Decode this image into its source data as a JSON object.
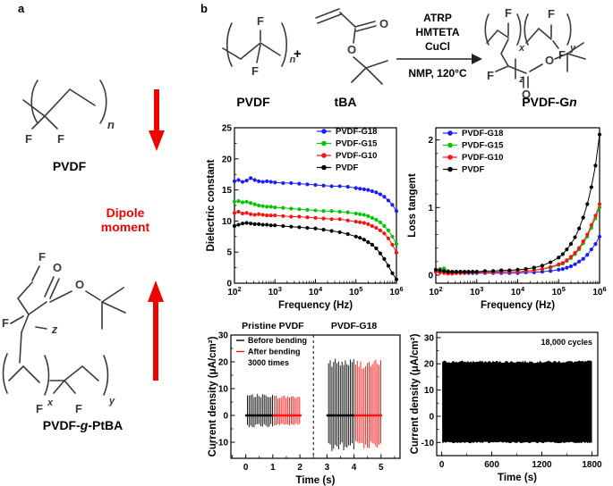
{
  "colors": {
    "accent_red": "#ee0202",
    "blue": "#1c1cff",
    "green": "#00c400",
    "red": "#ff1212",
    "black": "#000000"
  },
  "panel_a": {
    "label": "a",
    "pvdf_name": "PVDF",
    "pvdf_atoms": {
      "f1": "F",
      "f2": "F",
      "sub_n": "n"
    },
    "dipole_line1": "Dipole",
    "dipole_line2": "moment",
    "ptba_name_pre": "PVDF-",
    "ptba_name_g": "g",
    "ptba_name_post": "-PtBA",
    "ptba_atoms": {
      "f_top": "F",
      "o_dbl": "O",
      "o_ester": "O",
      "f_left": "F",
      "z": "z",
      "x": "x",
      "y": "y",
      "f_b1": "F",
      "f_b2": "F"
    }
  },
  "panel_b": {
    "label": "b",
    "reactant1": "PVDF",
    "plus": "+",
    "reactant2": "tBA",
    "cond1": "ATRP",
    "cond2": "HMTETA",
    "cond3": "CuCl",
    "cond_below": "NMP, 120°C",
    "product_pre": "PVDF-G",
    "product_n": "n",
    "r1_atoms": {
      "f_top": "F",
      "f_bot": "F",
      "sub_n": "n"
    },
    "tba_atoms": {
      "o_dbl": "O",
      "o_ester": "O"
    },
    "prod_atoms": {
      "f1": "F",
      "x": "x",
      "f2": "F",
      "y": "y",
      "f3": "F",
      "f4": "F",
      "z": "z",
      "o_dbl": "O",
      "o_ester": "O"
    }
  },
  "chart_data": [
    {
      "id": "dielectric",
      "type": "scatter-line",
      "xlabel": "Frequency (Hz)",
      "ylabel": "Dielectric constant",
      "xscale": "log",
      "xlim": [
        2,
        6
      ],
      "xtick_exps": [
        2,
        3,
        4,
        5,
        6
      ],
      "ylim": [
        0,
        25
      ],
      "yticks": [
        0,
        5,
        10,
        15,
        20,
        25
      ],
      "y_minor_step": 2.5,
      "legend_pos": "top-right",
      "x_log10": [
        2.0,
        2.1,
        2.2,
        2.3,
        2.4,
        2.5,
        2.6,
        2.7,
        2.8,
        2.9,
        3.0,
        3.2,
        3.4,
        3.6,
        3.8,
        4.0,
        4.2,
        4.4,
        4.6,
        4.8,
        5.0,
        5.1,
        5.2,
        5.3,
        5.4,
        5.5,
        5.6,
        5.7,
        5.8,
        5.9,
        6.0
      ],
      "series": [
        {
          "name": "PVDF-G18",
          "color": "#1c1cff",
          "y": [
            16.4,
            16.6,
            16.3,
            16.5,
            16.9,
            16.6,
            16.4,
            16.3,
            16.4,
            16.3,
            16.2,
            16.1,
            16.1,
            16.0,
            15.9,
            15.8,
            15.7,
            15.6,
            15.6,
            15.5,
            15.3,
            15.2,
            15.1,
            15.0,
            14.8,
            14.6,
            14.3,
            13.9,
            13.3,
            12.6,
            11.6
          ]
        },
        {
          "name": "PVDF-G15",
          "color": "#00c400",
          "y": [
            13.1,
            13.2,
            13.0,
            13.1,
            12.9,
            12.7,
            12.5,
            12.4,
            12.3,
            12.3,
            12.2,
            12.1,
            12.0,
            11.9,
            11.8,
            11.7,
            11.6,
            11.6,
            11.5,
            11.4,
            11.2,
            11.1,
            11.0,
            10.8,
            10.5,
            10.2,
            9.8,
            9.2,
            8.5,
            7.5,
            6.3
          ]
        },
        {
          "name": "PVDF-G10",
          "color": "#ff1212",
          "y": [
            11.3,
            11.5,
            11.2,
            11.3,
            11.1,
            11.0,
            11.1,
            11.0,
            10.9,
            10.9,
            10.9,
            10.8,
            10.7,
            10.7,
            10.6,
            10.5,
            10.4,
            10.3,
            10.3,
            10.1,
            9.9,
            9.8,
            9.7,
            9.5,
            9.2,
            8.9,
            8.5,
            8.0,
            7.2,
            6.2,
            4.9
          ]
        },
        {
          "name": "PVDF",
          "color": "#000000",
          "y": [
            9.2,
            9.4,
            9.6,
            9.7,
            9.6,
            9.5,
            9.5,
            9.4,
            9.4,
            9.3,
            9.3,
            9.2,
            9.1,
            9.0,
            8.9,
            8.8,
            8.6,
            8.4,
            8.2,
            7.9,
            7.5,
            7.3,
            7.0,
            6.6,
            6.2,
            5.6,
            4.8,
            3.9,
            2.8,
            1.6,
            0.6
          ]
        }
      ]
    },
    {
      "id": "loss",
      "type": "scatter-line",
      "xlabel": "Frequency (Hz)",
      "ylabel": "Loss tangent",
      "xscale": "log",
      "xlim": [
        2,
        6
      ],
      "xtick_exps": [
        2,
        3,
        4,
        5,
        6
      ],
      "ylim": [
        -0.12,
        2.18
      ],
      "yticks": [
        0,
        1,
        2
      ],
      "y_minor_step": 0.2,
      "legend_pos": "top-left",
      "x_log10": [
        2.0,
        2.1,
        2.2,
        2.3,
        2.4,
        2.5,
        2.6,
        2.7,
        2.8,
        2.9,
        3.0,
        3.2,
        3.4,
        3.6,
        3.8,
        4.0,
        4.2,
        4.4,
        4.6,
        4.8,
        5.0,
        5.1,
        5.2,
        5.3,
        5.4,
        5.5,
        5.6,
        5.7,
        5.8,
        5.9,
        6.0
      ],
      "series": [
        {
          "name": "PVDF-G18",
          "color": "#1c1cff",
          "y": [
            0.05,
            0.04,
            0.04,
            0.03,
            0.03,
            0.03,
            0.03,
            0.03,
            0.03,
            0.03,
            0.03,
            0.03,
            0.03,
            0.03,
            0.03,
            0.03,
            0.04,
            0.04,
            0.05,
            0.06,
            0.08,
            0.09,
            0.11,
            0.13,
            0.16,
            0.2,
            0.24,
            0.3,
            0.38,
            0.46,
            0.57
          ]
        },
        {
          "name": "PVDF-G15",
          "color": "#00c400",
          "y": [
            0.07,
            0.09,
            0.1,
            0.06,
            0.04,
            0.04,
            0.04,
            0.04,
            0.04,
            0.04,
            0.04,
            0.04,
            0.04,
            0.05,
            0.05,
            0.05,
            0.06,
            0.07,
            0.09,
            0.11,
            0.15,
            0.17,
            0.21,
            0.25,
            0.31,
            0.38,
            0.47,
            0.57,
            0.7,
            0.84,
            1.0
          ]
        },
        {
          "name": "PVDF-G10",
          "color": "#ff1212",
          "y": [
            0.05,
            0.04,
            0.03,
            0.02,
            0.02,
            0.03,
            0.03,
            0.03,
            0.04,
            0.04,
            0.04,
            0.04,
            0.04,
            0.05,
            0.05,
            0.05,
            0.06,
            0.07,
            0.09,
            0.12,
            0.16,
            0.18,
            0.22,
            0.27,
            0.33,
            0.4,
            0.5,
            0.6,
            0.74,
            0.88,
            1.05
          ]
        },
        {
          "name": "PVDF",
          "color": "#000000",
          "y": [
            0.08,
            0.07,
            0.06,
            0.05,
            0.05,
            0.05,
            0.05,
            0.05,
            0.05,
            0.05,
            0.05,
            0.06,
            0.06,
            0.07,
            0.07,
            0.08,
            0.09,
            0.11,
            0.14,
            0.19,
            0.26,
            0.31,
            0.38,
            0.46,
            0.56,
            0.69,
            0.85,
            1.05,
            1.3,
            1.62,
            2.08
          ]
        }
      ]
    },
    {
      "id": "bending",
      "type": "spike-train",
      "titles": [
        {
          "text": "Pristine PVDF",
          "x": 1.0
        },
        {
          "text": "PVDF-G18",
          "x": 4.0
        }
      ],
      "xlabel": "Time (s)",
      "ylabel": "Current density (μA/cm²)",
      "xlim": [
        -0.55,
        5.7
      ],
      "xticks": [
        0,
        1,
        2,
        3,
        4,
        5
      ],
      "x_minor_step": 0.5,
      "ylim": [
        -16,
        30
      ],
      "yticks": [
        -10,
        0,
        10,
        20,
        30
      ],
      "y_minor_step": 5,
      "divider_x": 2.5,
      "legend_lines": [
        {
          "label": "Before bending",
          "color": "#000000"
        },
        {
          "label": "After bending",
          "color": "#ff1212"
        },
        {
          "label": "3000 times",
          "color": null
        }
      ],
      "groups": [
        {
          "color": "#000000",
          "t0": 0.06,
          "t1": 0.99,
          "n": 16,
          "hi": 7.6,
          "lo": -4.0,
          "base": [
            -0.02,
            1.0
          ]
        },
        {
          "color": "#ff1212",
          "t0": 1.06,
          "t1": 1.99,
          "n": 16,
          "hi": 7.1,
          "lo": -3.6,
          "base": [
            1.0,
            2.06
          ]
        },
        {
          "color": "#000000",
          "t0": 3.06,
          "t1": 3.99,
          "n": 16,
          "hi": 20.2,
          "lo": -12.6,
          "base": [
            2.98,
            4.0
          ]
        },
        {
          "color": "#ff1212",
          "t0": 4.06,
          "t1": 4.99,
          "n": 16,
          "hi": 19.8,
          "lo": -11.2,
          "base": [
            4.0,
            5.04
          ]
        }
      ]
    },
    {
      "id": "cycles",
      "type": "band",
      "annotation": "18,000 cycles",
      "xlabel": "Time (s)",
      "ylabel": "Current density (μA/cm²)",
      "xlim": [
        -60,
        1870
      ],
      "xticks": [
        0,
        600,
        1200,
        1800
      ],
      "x_minor_step": 300,
      "ylim": [
        -15,
        32
      ],
      "yticks": [
        -10,
        0,
        10,
        20,
        30
      ],
      "y_minor_step": 5,
      "band": {
        "x0": 5,
        "x1": 1800,
        "top": 20.8,
        "bottom": -10.0,
        "top_jitter": 1.0,
        "bottom_jitter": 0.6,
        "color": "#000000"
      }
    }
  ]
}
